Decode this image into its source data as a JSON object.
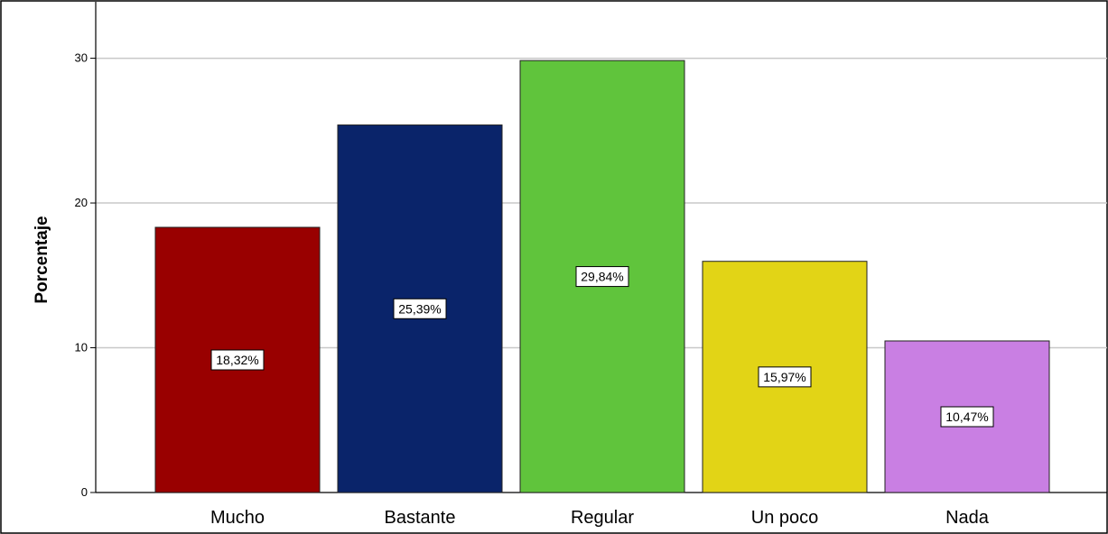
{
  "chart_data": {
    "type": "bar",
    "categories": [
      "Mucho",
      "Bastante",
      "Regular",
      "Un poco",
      "Nada"
    ],
    "values": [
      18.32,
      25.39,
      29.84,
      15.97,
      10.47
    ],
    "data_labels": [
      "18,32%",
      "25,39%",
      "29,84%",
      "15,97%",
      "10,47%"
    ],
    "colors": [
      "#990000",
      "#0a246a",
      "#60c43c",
      "#e2d416",
      "#c97fe3"
    ],
    "title": "",
    "xlabel": "",
    "ylabel": "Porcentaje",
    "ylim": [
      0,
      33.4
    ],
    "yticks": [
      0,
      10,
      20,
      30
    ],
    "ytick_labels": [
      "0",
      "10",
      "20",
      "30"
    ],
    "grid": true
  }
}
